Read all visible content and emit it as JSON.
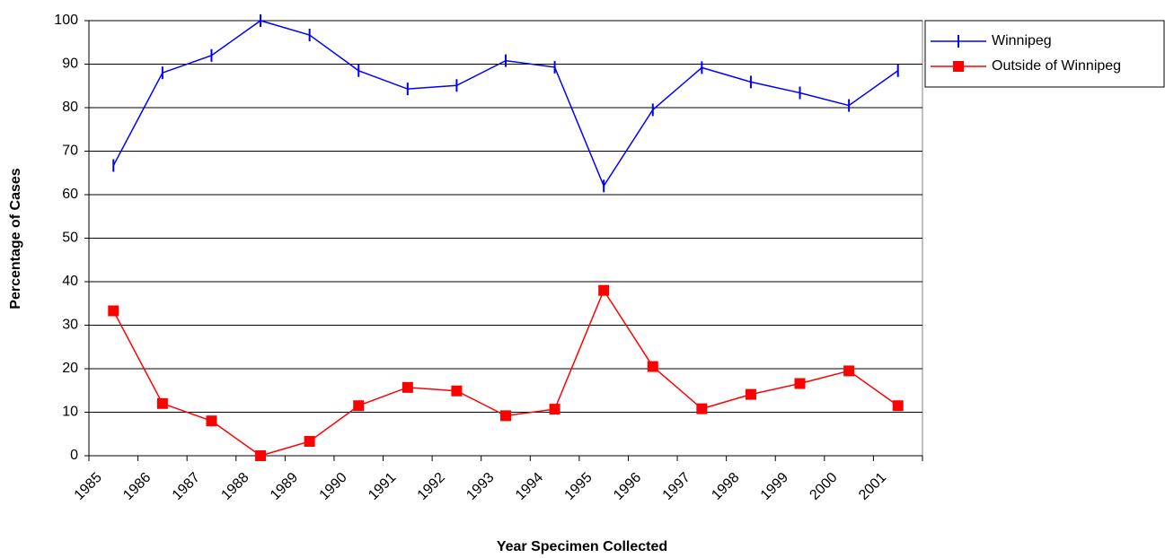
{
  "chart_data": {
    "type": "line",
    "x_label": "Year Specimen Collected",
    "y_label": "Percentage of Cases",
    "categories": [
      "1985",
      "1986",
      "1987",
      "1988",
      "1989",
      "1990",
      "1991",
      "1992",
      "1993",
      "1994",
      "1995",
      "1996",
      "1997",
      "1998",
      "1999",
      "2000",
      "2001"
    ],
    "series": [
      {
        "name": "Winnipeg",
        "color": "#0000ff",
        "marker": "tick",
        "values": [
          66.7,
          88,
          92,
          100,
          96.7,
          88.5,
          84.3,
          85.1,
          90.8,
          89.3,
          62,
          79.5,
          89.2,
          85.9,
          83.4,
          80.5,
          88.5
        ]
      },
      {
        "name": "Outside of Winnipeg",
        "color": "#ff0000",
        "marker": "square",
        "values": [
          33.3,
          12,
          8,
          0,
          3.3,
          11.5,
          15.7,
          14.9,
          9.2,
          10.7,
          38,
          20.5,
          10.8,
          14.1,
          16.6,
          19.5,
          11.5
        ]
      }
    ],
    "ylim": [
      0,
      100
    ],
    "yticks": [
      0,
      10,
      20,
      30,
      40,
      50,
      60,
      70,
      80,
      90,
      100
    ],
    "grid": true,
    "legend": "top-right"
  }
}
